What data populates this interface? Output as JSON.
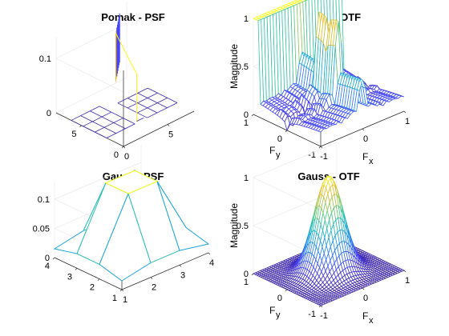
{
  "chart_data": [
    {
      "type": "surface",
      "title": "Pomak - PSF",
      "xlabel": "",
      "ylabel": "",
      "zlabel": "",
      "xlim": [
        0,
        8
      ],
      "ylim": [
        0,
        8
      ],
      "zlim": [
        0,
        0.14
      ],
      "x_ticks": [
        "0",
        "5"
      ],
      "y_ticks": [
        "0",
        "5"
      ],
      "z_ticks": [
        "0",
        "0.1"
      ],
      "z_tick_values": [
        0,
        0.1
      ],
      "grid_n": 8,
      "peak_row_values": [
        0.14,
        0.14,
        0.14,
        0.14,
        0.14,
        0.14,
        0.14,
        0.14
      ],
      "off_peak_value": 0
    },
    {
      "type": "surface",
      "title": "Pomak - OTF",
      "xlabel": "F",
      "xlabel_sub": "x",
      "ylabel": "F",
      "ylabel_sub": "y",
      "zlabel": "Magnitude",
      "xlim": [
        -1,
        1
      ],
      "ylim": [
        -1,
        1
      ],
      "zlim": [
        0,
        1
      ],
      "x_ticks": [
        "-1",
        "0",
        "1"
      ],
      "y_ticks": [
        "-1",
        "0",
        "1"
      ],
      "z_ticks": [
        "0",
        "0.5",
        "1"
      ],
      "z_tick_values": [
        0,
        0.5,
        1
      ],
      "shape": "abs(sinc) ridge along Fx, constant 1 along Fy edge"
    },
    {
      "type": "surface",
      "title": "Gauss - PSF",
      "xlabel": "",
      "ylabel": "",
      "zlabel": "",
      "xlim": [
        1,
        4
      ],
      "ylim": [
        1,
        4
      ],
      "zlim": [
        0,
        0.13
      ],
      "x_ticks": [
        "1",
        "2",
        "3",
        "4"
      ],
      "y_ticks": [
        "1",
        "2",
        "3",
        "4"
      ],
      "z_ticks": [
        "0",
        "0.05",
        "0.1"
      ],
      "z_tick_values": [
        0,
        0.05,
        0.1
      ],
      "values": [
        [
          0.015,
          0.025,
          0.025,
          0.015
        ],
        [
          0.025,
          0.125,
          0.125,
          0.025
        ],
        [
          0.025,
          0.125,
          0.125,
          0.025
        ],
        [
          0.015,
          0.025,
          0.025,
          0.015
        ]
      ]
    },
    {
      "type": "surface",
      "title": "Gauss - OTF",
      "xlabel": "F",
      "xlabel_sub": "x",
      "ylabel": "F",
      "ylabel_sub": "y",
      "zlabel": "Magnitude",
      "xlim": [
        -1,
        1
      ],
      "ylim": [
        -1,
        1
      ],
      "zlim": [
        0,
        1
      ],
      "x_ticks": [
        "-1",
        "0",
        "1"
      ],
      "y_ticks": [
        "-1",
        "0",
        "1"
      ],
      "z_ticks": [
        "0",
        "0.5",
        "1"
      ],
      "z_tick_values": [
        0,
        0.5,
        1
      ],
      "shape": "2D gaussian peak 1 at origin"
    }
  ],
  "colormap": [
    "#3e26a8",
    "#4743f8",
    "#2f7ef6",
    "#1ca6dc",
    "#2ec6a8",
    "#8ccd63",
    "#e4bb31",
    "#f9fb15"
  ]
}
